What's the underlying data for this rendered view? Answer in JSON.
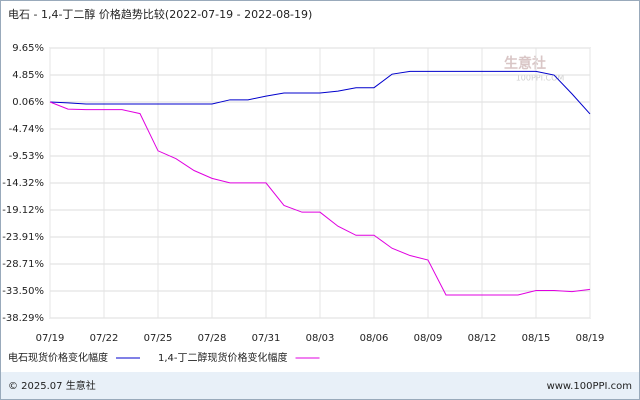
{
  "chart_data": {
    "type": "line",
    "title": "电石 - 1,4-丁二醇 价格趋势比较(2022-07-19 - 2022-08-19)",
    "watermark": "生意社",
    "watermark_sub": "100PPI.COM",
    "footer_left": "© 2025.07 生意社",
    "footer_right": "www.100PPI.com",
    "categories": [
      "07/19",
      null,
      null,
      "07/22",
      null,
      null,
      "07/25",
      null,
      null,
      "07/28",
      null,
      null,
      "07/31",
      null,
      null,
      "08/03",
      null,
      null,
      "08/06",
      null,
      null,
      "08/09",
      null,
      null,
      "08/12",
      null,
      null,
      "08/15",
      null,
      null,
      "08/19"
    ],
    "ylim": [
      -38.29,
      9.65
    ],
    "yticks": [
      {
        "value": 9.65,
        "label": "9.65%"
      },
      {
        "value": 4.85,
        "label": "4.85%"
      },
      {
        "value": 0.06,
        "label": "0.06%"
      },
      {
        "value": -4.74,
        "label": "-4.74%"
      },
      {
        "value": -9.53,
        "label": "-9.53%"
      },
      {
        "value": -14.32,
        "label": "-14.32%"
      },
      {
        "value": -19.12,
        "label": "-19.12%"
      },
      {
        "value": -23.91,
        "label": "-23.91%"
      },
      {
        "value": -28.71,
        "label": "-28.71%"
      },
      {
        "value": -33.5,
        "label": "-33.50%"
      },
      {
        "value": -38.29,
        "label": "-38.29%"
      }
    ],
    "grid": true,
    "series": [
      {
        "name": "电石现货价格变化幅度",
        "color": "#0000cc",
        "values": [
          0.06,
          -0.1,
          -0.3,
          -0.3,
          -0.3,
          -0.3,
          -0.3,
          -0.3,
          -0.3,
          -0.3,
          0.45,
          0.45,
          1.1,
          1.65,
          1.65,
          1.65,
          2.0,
          2.6,
          2.6,
          5.0,
          5.5,
          5.5,
          5.5,
          5.5,
          5.5,
          5.5,
          5.5,
          5.5,
          4.85,
          1.5,
          -2.06
        ]
      },
      {
        "name": "1,4-丁二醇现货价格变化幅度",
        "color": "#e000e0",
        "values": [
          0.06,
          -1.2,
          -1.3,
          -1.3,
          -1.3,
          -2.0,
          -8.6,
          -10.0,
          -12.1,
          -13.5,
          -14.3,
          -14.3,
          -14.3,
          -18.3,
          -19.5,
          -19.5,
          -22.0,
          -23.6,
          -23.6,
          -25.9,
          -27.2,
          -28.0,
          -34.2,
          -34.2,
          -34.2,
          -34.2,
          -34.2,
          -33.4,
          -33.4,
          -33.6,
          -33.2
        ]
      }
    ]
  }
}
